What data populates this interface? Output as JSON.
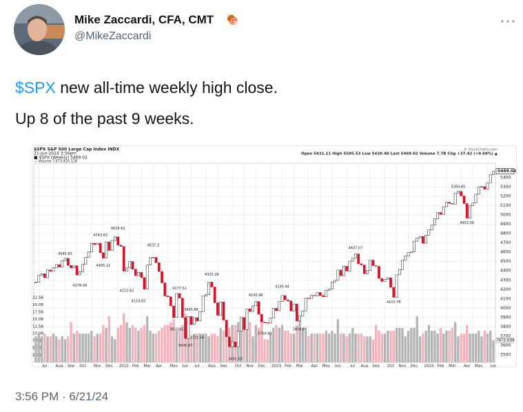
{
  "tweet": {
    "name": "Mike Zaccardi, CFA, CMT",
    "emoji": "🍖",
    "handle": "@MikeZaccardi",
    "text_link": "$SPX",
    "text_line1": " new all-time weekly high close.",
    "text_line2": "Up 8 of the past 9 weeks.",
    "timestamp": "3:56 PM · 6/21/24"
  },
  "chart_data": {
    "type": "candlestick",
    "title": "$SPX S&P 500 Large Cap Index INDX",
    "date": "21-Jun-2024 3:56pm",
    "legend_price": "■ $SPX (Weekly) 5469.02",
    "legend_volume": "— Volume 7,673,925,128",
    "quote": "Open 5431.11 High 5505.53 Low 5420.40 Last 5469.02 Volume 7.7B Chg +37.42 (+0.69%) ▲",
    "source": "© StockCharts.com",
    "last_label": "5469.02",
    "volume_last_label": "7673.93M",
    "up_color": "#ffffff",
    "down_color": "#d0142c",
    "up_volume_color": "#b4b4b4",
    "down_volume_color": "#f0b4bc",
    "close": [
      4280,
      4352,
      4370,
      4327,
      4411,
      4395,
      4437,
      4468,
      4442,
      4509,
      4535,
      4459,
      4433,
      4455,
      4357,
      4391,
      4471,
      4545,
      4605,
      4697,
      4683,
      4698,
      4595,
      4538,
      4712,
      4620,
      4726,
      4766,
      4677,
      4663,
      4398,
      4432,
      4501,
      4419,
      4349,
      4385,
      4329,
      4204,
      4463,
      4543,
      4546,
      4488,
      4393,
      4272,
      4132,
      4123,
      4024,
      3901,
      4158,
      4109,
      3901,
      3675,
      3912,
      3825,
      3899,
      3863,
      3962,
      4130,
      4145,
      4280,
      4228,
      4058,
      3924,
      4067,
      3873,
      3693,
      3586,
      3640,
      3583,
      3753,
      3901,
      3771,
      3993,
      3965,
      4026,
      4072,
      3934,
      3852,
      3845,
      3840,
      3895,
      3999,
      3973,
      4071,
      4136,
      4090,
      4079,
      3970,
      4046,
      3862,
      3917,
      3971,
      4109,
      4105,
      4138,
      4133,
      4169,
      4136,
      4124,
      4192,
      4205,
      4282,
      4299,
      4410,
      4348,
      4450,
      4399,
      4505,
      4536,
      4582,
      4478,
      4464,
      4370,
      4406,
      4516,
      4457,
      4450,
      4320,
      4288,
      4309,
      4327,
      4224,
      4117,
      4358,
      4415,
      4514,
      4559,
      4595,
      4604,
      4719,
      4755,
      4770,
      4697,
      4784,
      4840,
      4891,
      4959,
      5027,
      5006,
      5089,
      5137,
      5124,
      5117,
      5234,
      5254,
      5204,
      5123,
      4967,
      5100,
      5128,
      5223,
      5303,
      5305,
      5278,
      5347,
      5432,
      5469.02
    ],
    "volume": [
      9,
      10,
      9,
      10,
      9,
      9,
      10,
      9,
      8,
      9,
      8,
      9,
      14,
      10,
      11,
      10,
      10,
      10,
      10,
      11,
      9,
      10,
      10,
      13,
      12,
      16,
      9,
      8,
      12,
      13,
      17,
      14,
      12,
      13,
      12,
      11,
      12,
      13,
      16,
      11,
      10,
      10,
      11,
      12,
      13,
      13,
      14,
      15,
      11,
      12,
      13,
      17,
      10,
      9,
      10,
      10,
      10,
      10,
      10,
      9,
      10,
      10,
      9,
      12,
      11,
      14,
      12,
      13,
      13,
      14,
      13,
      13,
      12,
      14,
      9,
      13,
      12,
      16,
      8,
      8,
      10,
      12,
      13,
      12,
      13,
      11,
      11,
      10,
      10,
      13,
      15,
      12,
      11,
      9,
      10,
      10,
      10,
      10,
      10,
      11,
      10,
      11,
      10,
      15,
      10,
      10,
      9,
      10,
      12,
      10,
      10,
      10,
      9,
      9,
      9,
      8,
      13,
      11,
      10,
      10,
      11,
      11,
      11,
      12,
      12,
      12,
      9,
      11,
      12,
      12,
      16,
      9,
      10,
      11,
      13,
      11,
      11,
      10,
      12,
      10,
      11,
      11,
      12,
      14,
      9,
      10,
      10,
      13,
      10,
      10,
      10,
      11,
      9,
      11,
      10,
      11,
      7.7
    ],
    "ylim": [
      3426,
      5555
    ],
    "yticks": [
      3500,
      3600,
      3700,
      3800,
      3900,
      4000,
      4100,
      4200,
      4300,
      4400,
      4500,
      4600,
      4700,
      4800,
      4900,
      5000,
      5100,
      5200,
      5300,
      5400
    ],
    "volume_ylim": [
      0,
      22.5
    ],
    "volume_ticks": [
      {
        "value": 2.5,
        "label": "2.5B"
      },
      {
        "value": 5,
        "label": "5.0B"
      },
      {
        "value": 7.5,
        "label": "7.5B"
      },
      {
        "value": 10,
        "label": "10.0B"
      },
      {
        "value": 12.5,
        "label": "12.5B"
      },
      {
        "value": 15,
        "label": "15.0B"
      },
      {
        "value": 17.5,
        "label": "17.5B"
      },
      {
        "value": 20,
        "label": "20.0B"
      },
      {
        "value": 22.5,
        "label": "22.5B"
      }
    ],
    "xlim": [
      0,
      156
    ],
    "xticks": [
      {
        "value": 1,
        "label": "Jul"
      },
      {
        "value": 6,
        "label": "Aug"
      },
      {
        "value": 10,
        "label": "Sep"
      },
      {
        "value": 14,
        "label": "Oct"
      },
      {
        "value": 19,
        "label": "Nov"
      },
      {
        "value": 23,
        "label": "Dec"
      },
      {
        "value": 28,
        "label": "2022"
      },
      {
        "value": 32,
        "label": "Feb"
      },
      {
        "value": 36,
        "label": "Mar"
      },
      {
        "value": 40,
        "label": "Apr"
      },
      {
        "value": 45,
        "label": "May"
      },
      {
        "value": 49,
        "label": "Jun"
      },
      {
        "value": 53,
        "label": "Jul"
      },
      {
        "value": 58,
        "label": "Aug"
      },
      {
        "value": 62,
        "label": "Sep"
      },
      {
        "value": 67,
        "label": "Oct"
      },
      {
        "value": 71,
        "label": "Nov"
      },
      {
        "value": 75,
        "label": "Dec"
      },
      {
        "value": 80,
        "label": "2023"
      },
      {
        "value": 84,
        "label": "Feb"
      },
      {
        "value": 88,
        "label": "Mar"
      },
      {
        "value": 93,
        "label": "Apr"
      },
      {
        "value": 97,
        "label": "May"
      },
      {
        "value": 101,
        "label": "Jun"
      },
      {
        "value": 106,
        "label": "Jul"
      },
      {
        "value": 110,
        "label": "Aug"
      },
      {
        "value": 114,
        "label": "Sep"
      },
      {
        "value": 119,
        "label": "Oct"
      },
      {
        "value": 123,
        "label": "Nov"
      },
      {
        "value": 127,
        "label": "Dec"
      },
      {
        "value": 132,
        "label": "2024"
      },
      {
        "value": 136,
        "label": "Feb"
      },
      {
        "value": 140,
        "label": "Mar"
      },
      {
        "value": 145,
        "label": "Apr"
      },
      {
        "value": 149,
        "label": "May"
      },
      {
        "value": 154,
        "label": "Jun"
      }
    ],
    "annotations": [
      {
        "x": 10,
        "value": 4545.85
      },
      {
        "x": 15,
        "value": 4278.94
      },
      {
        "x": 23,
        "value": 4495.12
      },
      {
        "x": 22,
        "value": 4743.83
      },
      {
        "x": 28,
        "value": 4818.62
      },
      {
        "x": 31,
        "value": 4222.62
      },
      {
        "x": 35,
        "value": 4114.65
      },
      {
        "x": 40,
        "value": 4637.3
      },
      {
        "x": 49,
        "value": 4177.51
      },
      {
        "x": 48,
        "value": 3810.32
      },
      {
        "x": 53,
        "value": 3945.86
      },
      {
        "x": 51,
        "value": 3636.87
      },
      {
        "x": 55,
        "value": 3721.56
      },
      {
        "x": 60,
        "value": 4325.28
      },
      {
        "x": 68,
        "value": 3491.58
      },
      {
        "x": 75,
        "value": 4100.96
      },
      {
        "x": 78,
        "value": 3764.49
      },
      {
        "x": 84,
        "value": 4195.44
      },
      {
        "x": 90,
        "value": 3808.86
      },
      {
        "x": 109,
        "value": 4607.07
      },
      {
        "x": 122,
        "value": 4103.78
      },
      {
        "x": 144,
        "value": 5264.85
      },
      {
        "x": 147,
        "value": 4953.56
      }
    ],
    "grid": true
  }
}
